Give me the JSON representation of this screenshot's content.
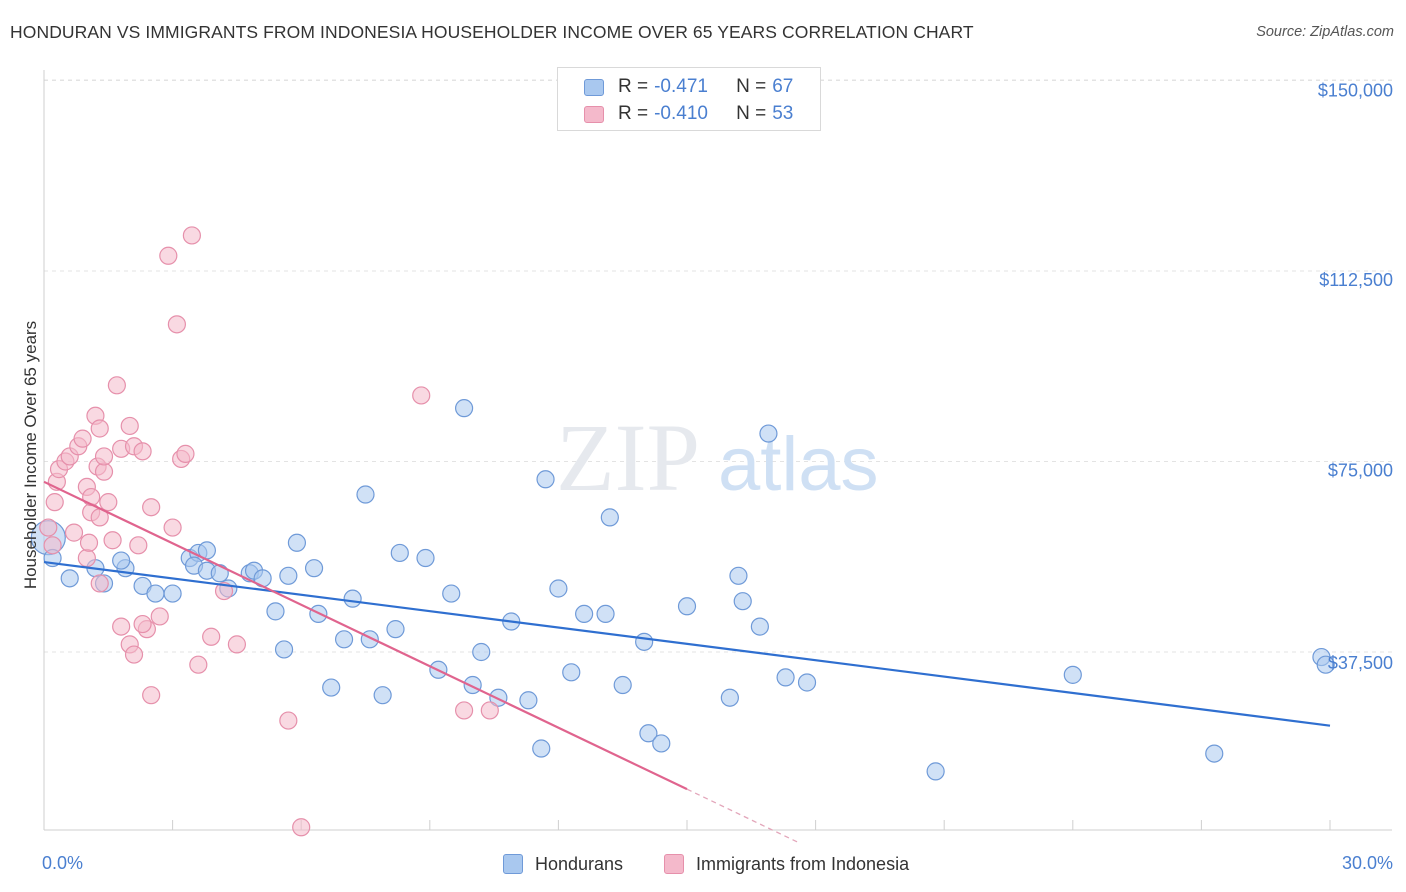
{
  "header": {
    "title": "HONDURAN VS IMMIGRANTS FROM INDONESIA HOUSEHOLDER INCOME OVER 65 YEARS CORRELATION CHART",
    "source": "Source: ZipAtlas.com"
  },
  "watermark": {
    "zip": "ZIP",
    "atlas": "atlas"
  },
  "legend": {
    "r_label": "R =",
    "n_label": "N =",
    "series": [
      {
        "name": "Hondurans",
        "r": "-0.471",
        "n": "67"
      },
      {
        "name": "Immigrants from Indonesia",
        "r": "-0.410",
        "n": "53"
      }
    ]
  },
  "colors": {
    "blue_fill": "#a9c8ef",
    "blue_stroke": "#6f9ad8",
    "blue_line": "#2f6fd0",
    "pink_fill": "#f4b9cb",
    "pink_stroke": "#e690ab",
    "pink_line": "#e0648e",
    "tick_text": "#4a7fd0"
  },
  "chart_data": {
    "type": "scatter",
    "title": "HONDURAN VS IMMIGRANTS FROM INDONESIA HOUSEHOLDER INCOME OVER 65 YEARS CORRELATION CHART",
    "xlabel": "",
    "ylabel": "Householder Income Over 65 years",
    "xlim": [
      0,
      30
    ],
    "ylim": [
      0,
      155000
    ],
    "x_tick_labels": [
      "0.0%",
      "30.0%"
    ],
    "y_ticks": [
      {
        "value": 150000,
        "label": "$150,000"
      },
      {
        "value": 112500,
        "label": "$112,500"
      },
      {
        "value": 75000,
        "label": "$75,000"
      },
      {
        "value": 37500,
        "label": "$37,500"
      }
    ],
    "grid": true,
    "series": [
      {
        "name": "Hondurans",
        "trend": {
          "x0": 0.0,
          "y0": 55200,
          "x1": 30.0,
          "y1": 23000
        },
        "points": [
          [
            0.1,
            60000
          ],
          [
            0.2,
            56000
          ],
          [
            0.6,
            52000
          ],
          [
            1.2,
            54000
          ],
          [
            1.4,
            51000
          ],
          [
            1.9,
            54000
          ],
          [
            1.8,
            55500
          ],
          [
            2.3,
            50500
          ],
          [
            2.6,
            49000
          ],
          [
            3.0,
            49000
          ],
          [
            3.4,
            56000
          ],
          [
            3.6,
            57000
          ],
          [
            3.5,
            54500
          ],
          [
            3.8,
            53500
          ],
          [
            3.8,
            57500
          ],
          [
            4.1,
            53000
          ],
          [
            4.3,
            50000
          ],
          [
            4.8,
            53000
          ],
          [
            4.9,
            53500
          ],
          [
            5.1,
            52000
          ],
          [
            5.4,
            45500
          ],
          [
            5.6,
            38000
          ],
          [
            5.7,
            52500
          ],
          [
            5.9,
            59000
          ],
          [
            6.3,
            54000
          ],
          [
            6.4,
            45000
          ],
          [
            6.7,
            30500
          ],
          [
            7.0,
            40000
          ],
          [
            7.2,
            48000
          ],
          [
            7.5,
            68500
          ],
          [
            7.6,
            40000
          ],
          [
            7.9,
            29000
          ],
          [
            8.2,
            42000
          ],
          [
            8.3,
            57000
          ],
          [
            8.9,
            56000
          ],
          [
            9.2,
            34000
          ],
          [
            9.5,
            49000
          ],
          [
            9.8,
            85500
          ],
          [
            10.0,
            31000
          ],
          [
            10.2,
            37500
          ],
          [
            10.6,
            28500
          ],
          [
            10.9,
            43500
          ],
          [
            11.3,
            28000
          ],
          [
            11.6,
            18500
          ],
          [
            11.7,
            71500
          ],
          [
            12.0,
            50000
          ],
          [
            12.3,
            33500
          ],
          [
            12.6,
            45000
          ],
          [
            13.2,
            64000
          ],
          [
            13.1,
            45000
          ],
          [
            13.5,
            31000
          ],
          [
            14.0,
            39500
          ],
          [
            14.1,
            21500
          ],
          [
            14.4,
            19500
          ],
          [
            15.0,
            46500
          ],
          [
            16.0,
            28500
          ],
          [
            16.2,
            52500
          ],
          [
            16.3,
            47500
          ],
          [
            16.7,
            42500
          ],
          [
            16.9,
            80500
          ],
          [
            17.3,
            32500
          ],
          [
            17.8,
            31500
          ],
          [
            20.8,
            14000
          ],
          [
            24.0,
            33000
          ],
          [
            27.3,
            17500
          ],
          [
            29.8,
            36500
          ],
          [
            29.9,
            35000
          ]
        ]
      },
      {
        "name": "Immigrants from Indonesia",
        "trend": {
          "x0": 0.0,
          "y0": 71000,
          "x1": 15.0,
          "y1": 10500,
          "dash_to_x": 17.6,
          "dash_to_y": 0
        },
        "points": [
          [
            0.1,
            62000
          ],
          [
            0.2,
            58500
          ],
          [
            0.25,
            67000
          ],
          [
            0.3,
            71000
          ],
          [
            0.35,
            73500
          ],
          [
            0.5,
            75000
          ],
          [
            0.6,
            76000
          ],
          [
            0.7,
            61000
          ],
          [
            0.8,
            78000
          ],
          [
            0.9,
            79500
          ],
          [
            1.0,
            70000
          ],
          [
            1.1,
            65000
          ],
          [
            1.0,
            56000
          ],
          [
            1.05,
            59000
          ],
          [
            1.1,
            68000
          ],
          [
            1.2,
            84000
          ],
          [
            1.25,
            74000
          ],
          [
            1.3,
            64000
          ],
          [
            1.3,
            51000
          ],
          [
            1.4,
            73000
          ],
          [
            1.5,
            67000
          ],
          [
            1.6,
            59500
          ],
          [
            1.3,
            81500
          ],
          [
            1.4,
            76000
          ],
          [
            1.7,
            90000
          ],
          [
            1.8,
            42500
          ],
          [
            1.8,
            77500
          ],
          [
            2.0,
            39000
          ],
          [
            2.2,
            58500
          ],
          [
            2.0,
            82000
          ],
          [
            2.1,
            78000
          ],
          [
            2.3,
            77000
          ],
          [
            2.5,
            66000
          ],
          [
            2.4,
            42000
          ],
          [
            2.5,
            29000
          ],
          [
            2.7,
            44500
          ],
          [
            2.9,
            115500
          ],
          [
            3.0,
            62000
          ],
          [
            3.1,
            102000
          ],
          [
            3.2,
            75500
          ],
          [
            3.3,
            76500
          ],
          [
            3.45,
            119500
          ],
          [
            3.6,
            35000
          ],
          [
            3.9,
            40500
          ],
          [
            4.2,
            49500
          ],
          [
            2.1,
            37000
          ],
          [
            2.3,
            43000
          ],
          [
            5.7,
            24000
          ],
          [
            6.0,
            3000
          ],
          [
            4.5,
            39000
          ],
          [
            8.8,
            88000
          ],
          [
            9.8,
            26000
          ],
          [
            10.4,
            26000
          ]
        ]
      }
    ]
  }
}
